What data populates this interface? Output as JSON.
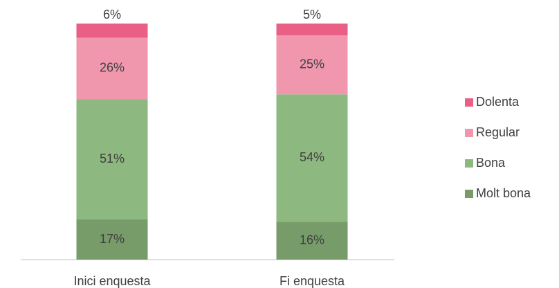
{
  "chart_data": {
    "type": "bar",
    "stacked": true,
    "categories": [
      "Inici enquesta",
      "Fi enquesta"
    ],
    "series": [
      {
        "name": "Molt bona",
        "color": "#779c6a",
        "values": [
          17,
          16
        ],
        "value_labels": [
          "17%",
          "16%"
        ]
      },
      {
        "name": "Bona",
        "color": "#8db87f",
        "values": [
          51,
          54
        ],
        "value_labels": [
          "51%",
          "54%"
        ]
      },
      {
        "name": "Regular",
        "color": "#f097ae",
        "values": [
          26,
          25
        ],
        "value_labels": [
          "26%",
          "25%"
        ]
      },
      {
        "name": "Dolenta",
        "color": "#ea5f86",
        "values": [
          6,
          5
        ],
        "value_labels": [
          "6%",
          "5%"
        ]
      }
    ],
    "legend": "right"
  }
}
